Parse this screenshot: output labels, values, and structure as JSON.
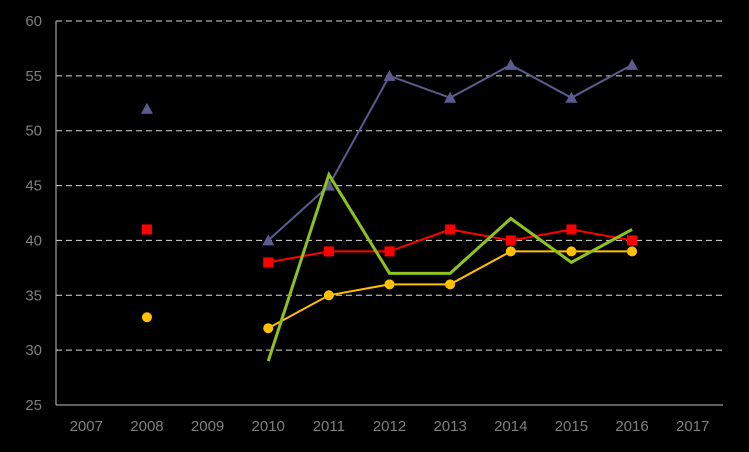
{
  "chart_data": {
    "type": "line",
    "x": [
      "2007",
      "2008",
      "2009",
      "2010",
      "2011",
      "2012",
      "2013",
      "2014",
      "2015",
      "2016",
      "2017"
    ],
    "ylim": [
      25,
      60
    ],
    "yticks": [
      "25",
      "30",
      "35",
      "40",
      "45",
      "50",
      "55",
      "60"
    ],
    "grid": "horizontal-dashed",
    "legend": "none",
    "background": "#000000",
    "tick_color": "#7f7f7f",
    "series": [
      {
        "color": "#5b5b8f",
        "marker": "triangle",
        "values": [
          null,
          52,
          null,
          40,
          45,
          55,
          53,
          56,
          53,
          56,
          null
        ],
        "line_from": "2010"
      },
      {
        "color": "#ff0000",
        "marker": "square",
        "values": [
          null,
          41,
          null,
          38,
          39,
          39,
          41,
          40,
          41,
          40,
          null
        ],
        "line_from": "2010"
      },
      {
        "color": "#ffc000",
        "marker": "circle",
        "values": [
          null,
          33,
          null,
          32,
          35,
          36,
          36,
          39,
          39,
          39,
          null
        ],
        "line_from": "2010"
      },
      {
        "color": "#8dc21f",
        "marker": "none",
        "values": [
          null,
          null,
          null,
          29,
          46,
          37,
          37,
          42,
          38,
          41,
          null
        ],
        "line_from": "2010"
      }
    ]
  }
}
